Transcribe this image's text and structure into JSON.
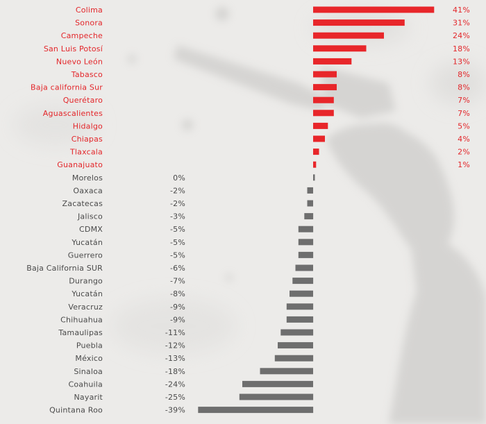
{
  "chart_data": {
    "type": "bar",
    "orientation": "horizontal",
    "title": "",
    "xlabel": "",
    "ylabel": "",
    "grid": false,
    "legend": "none",
    "colors": {
      "positive": "#e8262a",
      "negative": "#6e6e6e",
      "positive_text": "#e3262a",
      "negative_text": "#4a4a4a"
    },
    "categories": [
      "Colima",
      "Sonora",
      "Campeche",
      "San Luis Potosí",
      "Nuevo León",
      "Tabasco",
      "Baja california Sur",
      "Querétaro",
      "Aguascalientes",
      "Hidalgo",
      "Chiapas",
      "Tlaxcala",
      "Guanajuato",
      "Morelos",
      "Oaxaca",
      "Zacatecas",
      "Jalisco",
      "CDMX",
      "Yucatán",
      "Guerrero",
      "Baja California SUR",
      "Durango",
      "Yucatán",
      "Veracruz",
      "Chihuahua",
      "Tamaulipas",
      "Puebla",
      "México",
      "Sinaloa",
      "Coahuila",
      "Nayarit",
      "Quintana Roo"
    ],
    "values": [
      41,
      31,
      24,
      18,
      13,
      8,
      8,
      7,
      7,
      5,
      4,
      2,
      1,
      0,
      -2,
      -2,
      -3,
      -5,
      -5,
      -5,
      -6,
      -7,
      -8,
      -9,
      -9,
      -11,
      -12,
      -13,
      -18,
      -24,
      -25,
      -39
    ],
    "value_labels": [
      "41%",
      "31%",
      "24%",
      "18%",
      "13%",
      "8%",
      "8%",
      "7%",
      "7%",
      "5%",
      "4%",
      "2%",
      "1%",
      "0%",
      "-2%",
      "-2%",
      "-3%",
      "-5%",
      "-5%",
      "-5%",
      "-6%",
      "-7%",
      "-8%",
      "-9%",
      "-9%",
      "-11%",
      "-12%",
      "-13%",
      "-18%",
      "-24%",
      "-25%",
      "-39%"
    ]
  }
}
